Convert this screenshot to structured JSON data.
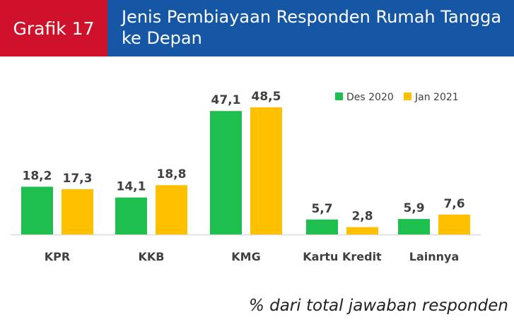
{
  "header": {
    "badge": "Grafik 17",
    "title": "Jenis Pembiayaan Responden Rumah Tangga ke Depan"
  },
  "footnote": "% dari total jawaban responden",
  "clip_mark": "o",
  "colors": {
    "header_blue": "#1557a4",
    "badge_red": "#d0112b",
    "series_green": "#1fbf4f",
    "series_yellow": "#ffc000"
  },
  "chart_data": {
    "type": "bar",
    "categories": [
      "KPR",
      "KKB",
      "KMG",
      "Kartu Kredit",
      "Lainnya"
    ],
    "series": [
      {
        "name": "Des 2020",
        "values": [
          18.2,
          14.1,
          47.1,
          5.7,
          5.9
        ],
        "color": "#1fbf4f"
      },
      {
        "name": "Jan 2021",
        "values": [
          17.3,
          18.8,
          48.5,
          2.8,
          7.6
        ],
        "color": "#ffc000"
      }
    ],
    "value_labels": [
      [
        "18,2",
        "14,1",
        "47,1",
        "5,7",
        "5,9"
      ],
      [
        "17,3",
        "18,8",
        "48,5",
        "2,8",
        "7,6"
      ]
    ],
    "ylim": [
      0,
      48.5
    ],
    "grid": false,
    "legend_position": "top-right"
  }
}
